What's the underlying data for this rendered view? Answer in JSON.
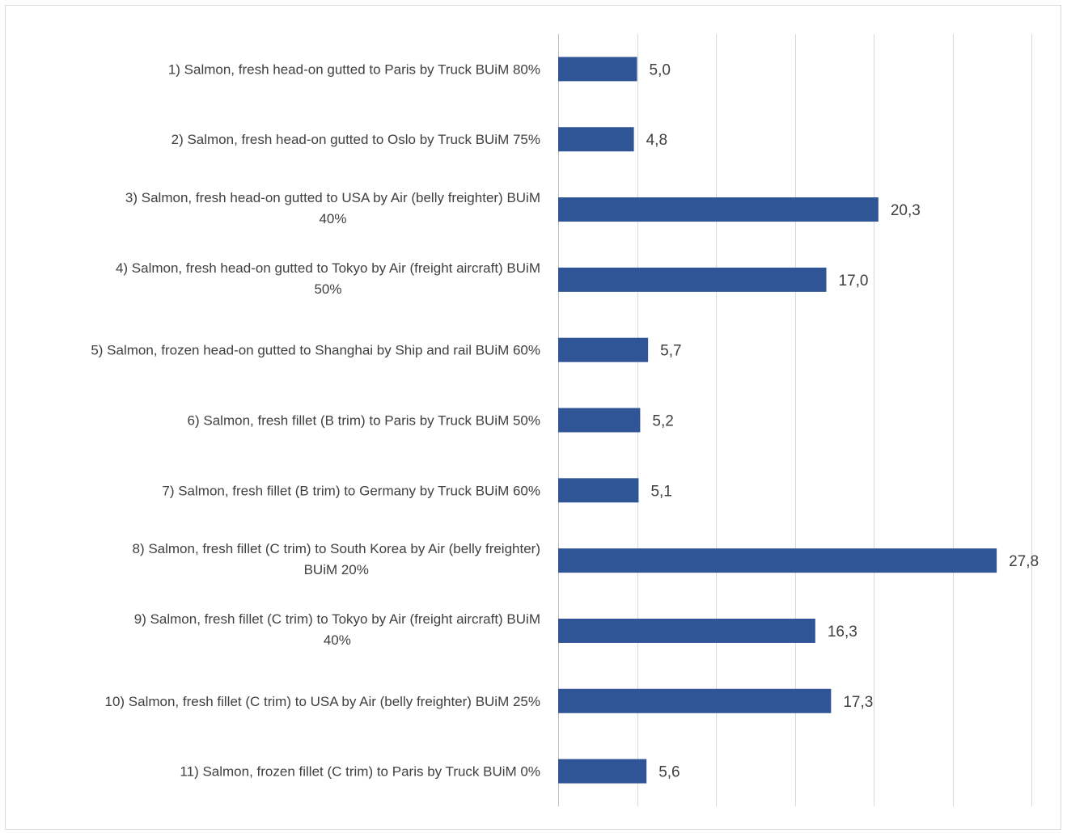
{
  "chart_data": {
    "type": "bar",
    "orientation": "horizontal",
    "title": "",
    "xlabel": "",
    "ylabel": "",
    "xlim": [
      0,
      30
    ],
    "grid": true,
    "legend": "none",
    "bar_color": "#2f5597",
    "categories": [
      [
        "1) Salmon, fresh head-on gutted to Paris  by Truck  BUiM 80%"
      ],
      [
        "2) Salmon, fresh head-on gutted to Oslo  by Truck  BUiM 75%"
      ],
      [
        "3) Salmon, fresh head-on gutted to USA  by Air (belly freighter) BUiM",
        "40%"
      ],
      [
        "4) Salmon, fresh head-on gutted to Tokyo  by Air (freight aircraft) BUiM",
        "50%"
      ],
      [
        "5) Salmon, frozen head-on gutted to Shanghai by Ship and rail BUiM 60%"
      ],
      [
        "6) Salmon, fresh fillet (B trim) to Paris by Truck BUiM 50%"
      ],
      [
        "7) Salmon, fresh fillet (B trim) to Germany  by Truck BUiM 60%"
      ],
      [
        "8) Salmon, fresh fillet (C trim)  to South Korea  by Air (belly freighter)",
        "BUiM 20%"
      ],
      [
        "9) Salmon, fresh fillet (C trim)  to Tokyo by Air (freight aircraft) BUiM",
        "40%"
      ],
      [
        "10) Salmon, fresh fillet (C trim) to USA  by Air (belly freighter) BUiM 25%"
      ],
      [
        "11) Salmon, frozen fillet (C trim) to Paris by Truck BUiM 0%"
      ]
    ],
    "values": [
      5.0,
      4.8,
      20.3,
      17.0,
      5.7,
      5.2,
      5.1,
      27.8,
      16.3,
      17.3,
      5.6
    ],
    "value_labels": [
      "5,0",
      "4,8",
      "20,3",
      "17,0",
      "5,7",
      "5,2",
      "5,1",
      "27,8",
      "16,3",
      "17,3",
      "5,6"
    ]
  }
}
